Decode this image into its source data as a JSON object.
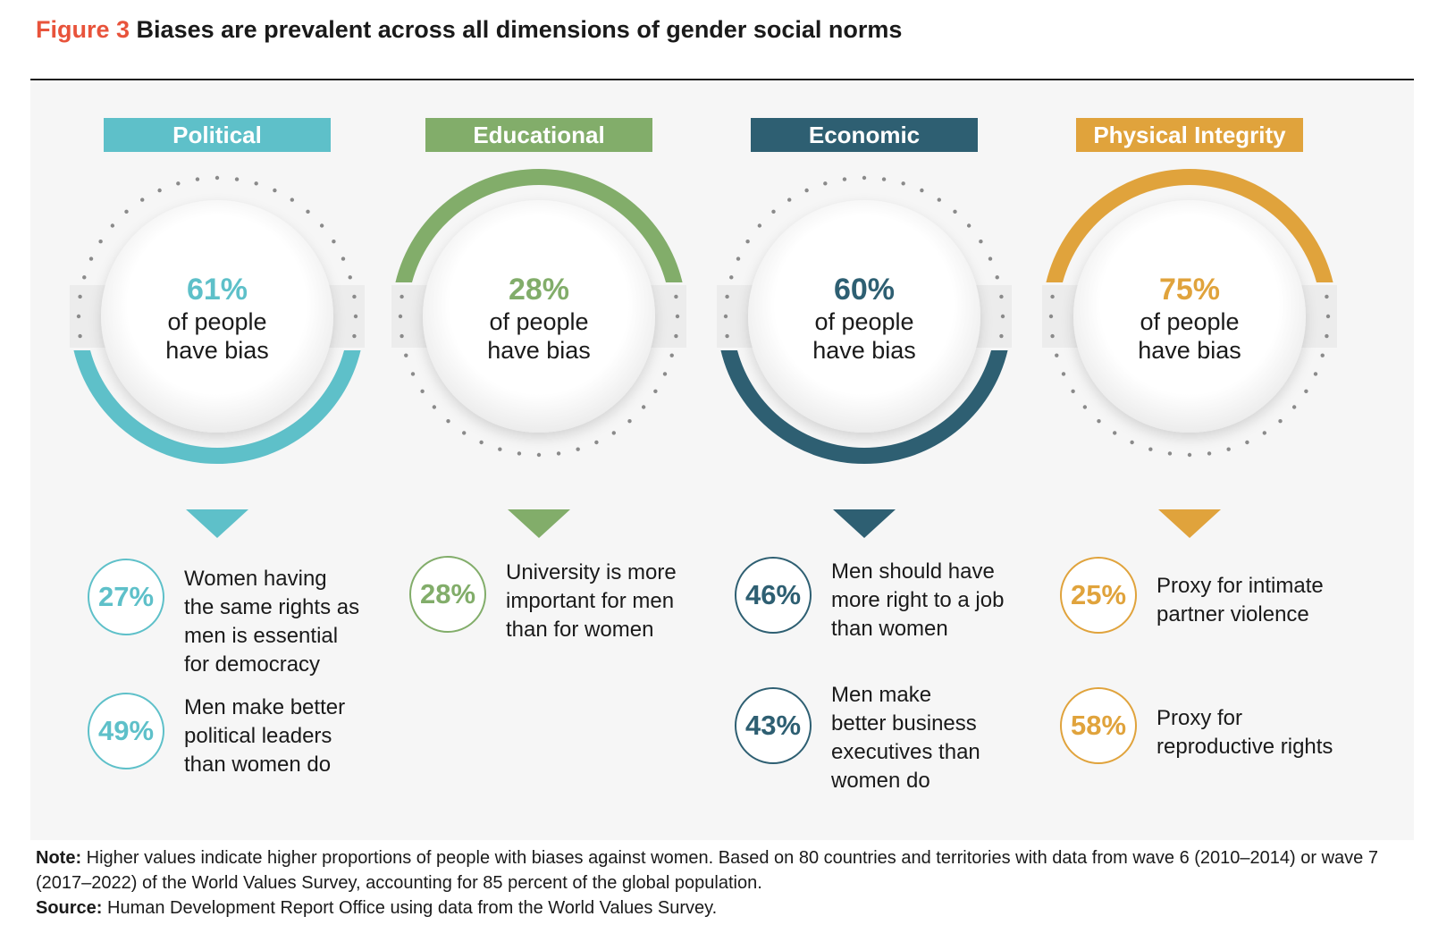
{
  "figure_label": "Figure 3",
  "figure_title": "Biases are prevalent across all dimensions of gender social norms",
  "note_label": "Note:",
  "note_text": "Higher values indicate higher proportions of people with biases against women. Based on 80 countries and territories with data from wave 6 (2010–2014) or wave 7 (2017–2022) of the World Values Survey, accounting for 85 percent of the global population.",
  "source_label": "Source:",
  "source_text": "Human Development Report Office using data from the World Values Survey.",
  "chart_data": {
    "type": "pie",
    "title": "Biases are prevalent across all dimensions of gender social norms",
    "center_suffix_line1": "of people",
    "center_suffix_line2": "have bias",
    "categories": [
      {
        "name": "Political",
        "value": 61,
        "label": "61%",
        "color": "#5ec0c9",
        "arc": "bottom",
        "indicators": [
          {
            "value": 27,
            "label": "27%",
            "text": [
              "Women having",
              "the same rights as",
              "men is essential",
              "for democracy"
            ]
          },
          {
            "value": 49,
            "label": "49%",
            "text": [
              "Men make better",
              "political leaders",
              "than women do"
            ]
          }
        ]
      },
      {
        "name": "Educational",
        "value": 28,
        "label": "28%",
        "color": "#82ad6a",
        "arc": "top",
        "indicators": [
          {
            "value": 28,
            "label": "28%",
            "text": [
              "University is more",
              "important for men",
              "than for women"
            ]
          }
        ]
      },
      {
        "name": "Economic",
        "value": 60,
        "label": "60%",
        "color": "#2e5f72",
        "arc": "bottom",
        "indicators": [
          {
            "value": 46,
            "label": "46%",
            "text": [
              "Men should have",
              "more right to a job",
              "than women"
            ]
          },
          {
            "value": 43,
            "label": "43%",
            "text": [
              "Men make",
              "better business",
              "executives than",
              "women do"
            ]
          }
        ]
      },
      {
        "name": "Physical Integrity",
        "value": 75,
        "label": "75%",
        "color": "#e0a33c",
        "arc": "top",
        "indicators": [
          {
            "value": 25,
            "label": "25%",
            "text": [
              "Proxy for intimate",
              "partner violence"
            ]
          },
          {
            "value": 58,
            "label": "58%",
            "text": [
              "Proxy for",
              "reproductive rights"
            ]
          }
        ]
      }
    ]
  }
}
